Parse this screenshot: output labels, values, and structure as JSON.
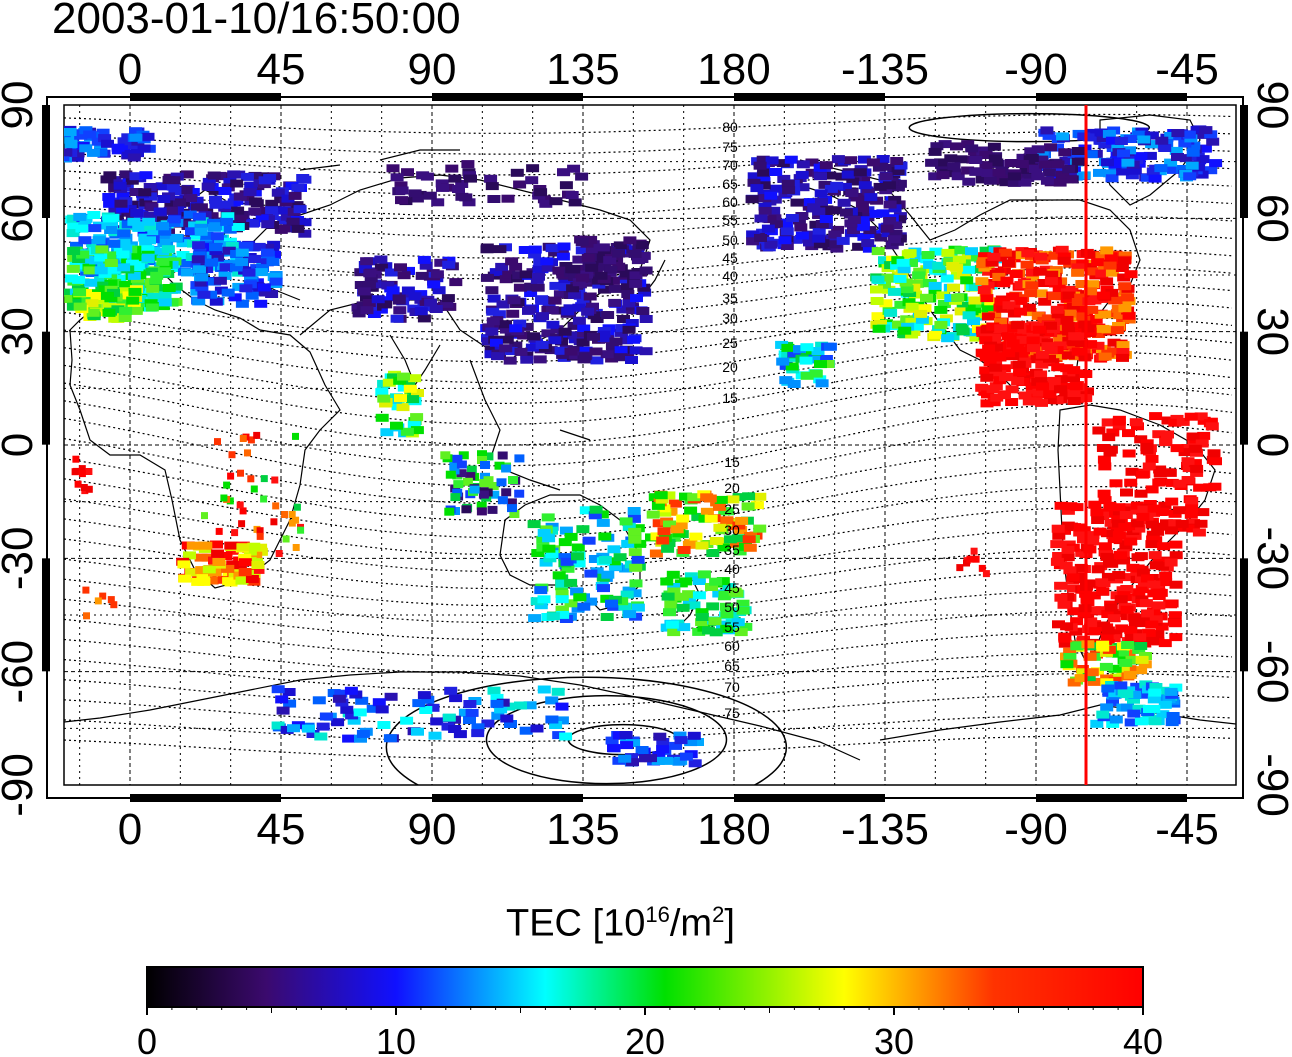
{
  "title": "2003-01-10/16:50:00",
  "map": {
    "top_lon_labels": [
      "0",
      "45",
      "90",
      "135",
      "180",
      "-135",
      "-90",
      "-45"
    ],
    "bottom_lon_labels": [
      "0",
      "45",
      "90",
      "135",
      "180",
      "-135",
      "-90",
      "-45"
    ],
    "left_lat_labels": [
      "90",
      "60",
      "30",
      "0",
      "-30",
      "-60",
      "-90"
    ],
    "right_lat_labels": [
      "90",
      "60",
      "30",
      "0",
      "-30",
      "-60",
      "-90"
    ],
    "contour_labels_north": [
      "80",
      "75",
      "70",
      "65",
      "60",
      "55",
      "50",
      "45",
      "40",
      "35",
      "30",
      "25",
      "20",
      "15"
    ],
    "contour_labels_south": [
      "15",
      "20",
      "25",
      "30",
      "35",
      "40",
      "45",
      "50",
      "55",
      "60",
      "65",
      "70",
      "75"
    ],
    "sun_meridian_color": "#ff0000"
  },
  "colorbar": {
    "title_prefix": "TEC  [10",
    "title_exp": "16",
    "title_mid": "/m",
    "title_exp2": "2",
    "title_suffix": "]",
    "tick_labels": [
      "0",
      "10",
      "20",
      "30",
      "40"
    ]
  }
}
